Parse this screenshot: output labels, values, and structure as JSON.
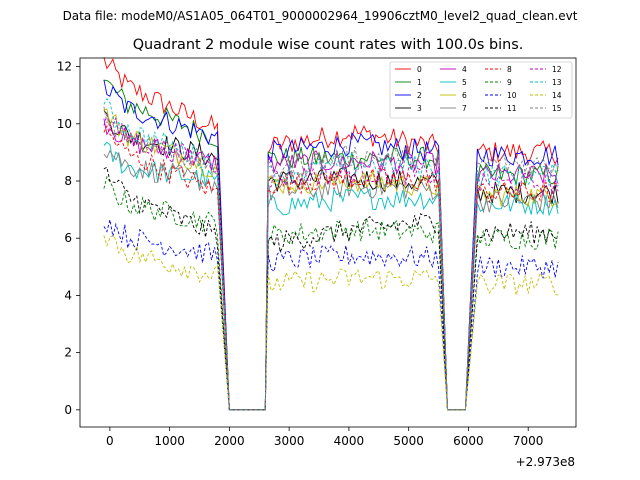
{
  "suptitle": "Data file: modeM0/AS1A05_064T01_9000002964_19906cztM0_level2_quad_clean.evt",
  "chart_data": {
    "type": "line",
    "title": "Quadrant 2 module wise count rates with 100.0s bins.",
    "xlabel": "",
    "ylabel": "",
    "x_offset_label": "+2.973e8",
    "xlim": [
      -500,
      7800
    ],
    "ylim": [
      -0.6,
      12.3
    ],
    "xticks": [
      0,
      1000,
      2000,
      3000,
      4000,
      5000,
      6000,
      7000
    ],
    "yticks": [
      0,
      2,
      4,
      6,
      8,
      10,
      12
    ],
    "legend_position": "top-right",
    "segments": [
      {
        "start": -100,
        "end": 1800
      },
      {
        "start": 2650,
        "end": 5500
      },
      {
        "start": 6150,
        "end": 7500
      }
    ],
    "gaps": [
      {
        "fall_from": 1800,
        "flat_start": 2000,
        "flat_end": 2600,
        "rise_to": 2650
      },
      {
        "fall_from": 5500,
        "flat_start": 5650,
        "flat_end": 5950,
        "rise_to": 6150
      }
    ],
    "series": [
      {
        "name": "0",
        "color": "#ff0000",
        "style": "solid",
        "levels": [
          11.7,
          9.8,
          9.2,
          9.7,
          9.2,
          9.0
        ]
      },
      {
        "name": "1",
        "color": "#008000",
        "style": "solid",
        "levels": [
          11.0,
          9.5,
          8.8,
          8.8,
          8.8,
          8.2
        ]
      },
      {
        "name": "2",
        "color": "#0000ff",
        "style": "solid",
        "levels": [
          10.8,
          9.5,
          9.0,
          9.3,
          9.0,
          8.9
        ]
      },
      {
        "name": "3",
        "color": "#000000",
        "style": "solid",
        "levels": [
          9.8,
          8.8,
          8.0,
          8.1,
          7.9,
          7.6
        ]
      },
      {
        "name": "4",
        "color": "#bf00bf",
        "style": "solid",
        "levels": [
          9.6,
          8.6,
          8.6,
          8.7,
          8.6,
          8.2
        ]
      },
      {
        "name": "5",
        "color": "#00bfbf",
        "style": "solid",
        "levels": [
          8.6,
          8.0,
          7.1,
          7.4,
          7.4,
          7.2
        ]
      },
      {
        "name": "6",
        "color": "#bfbf00",
        "style": "solid",
        "levels": [
          9.9,
          8.4,
          7.9,
          8.0,
          7.8,
          7.5
        ]
      },
      {
        "name": "7",
        "color": "#808080",
        "style": "solid",
        "levels": [
          8.7,
          7.9,
          7.6,
          7.8,
          7.7,
          7.3
        ]
      },
      {
        "name": "8",
        "color": "#ff0000",
        "style": "dashed",
        "levels": [
          9.3,
          7.6,
          7.9,
          8.1,
          8.0,
          7.6
        ]
      },
      {
        "name": "9",
        "color": "#008000",
        "style": "dashed",
        "levels": [
          7.4,
          6.5,
          6.1,
          6.3,
          6.2,
          6.0
        ]
      },
      {
        "name": "10",
        "color": "#0000ff",
        "style": "dashed",
        "levels": [
          6.2,
          5.4,
          5.2,
          5.4,
          5.3,
          5.0
        ]
      },
      {
        "name": "11",
        "color": "#000000",
        "style": "dashed",
        "levels": [
          7.8,
          6.1,
          5.8,
          6.3,
          6.6,
          6.2
        ]
      },
      {
        "name": "12",
        "color": "#bf00bf",
        "style": "dashed",
        "levels": [
          9.7,
          8.6,
          8.1,
          8.3,
          8.2,
          7.9
        ]
      },
      {
        "name": "13",
        "color": "#00bfbf",
        "style": "dashed",
        "levels": [
          10.1,
          8.6,
          8.2,
          8.6,
          8.5,
          8.2
        ]
      },
      {
        "name": "14",
        "color": "#bfbf00",
        "style": "dashed",
        "levels": [
          5.7,
          4.7,
          4.4,
          4.6,
          4.6,
          4.4
        ]
      },
      {
        "name": "15",
        "color": "#808080",
        "style": "dashed",
        "levels": [
          9.8,
          8.5,
          8.4,
          8.9,
          8.8,
          8.6
        ]
      }
    ]
  }
}
